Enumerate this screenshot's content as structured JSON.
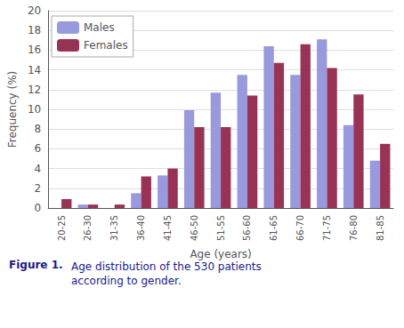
{
  "chart_data": {
    "type": "bar",
    "categories": [
      "20-25",
      "26-30",
      "31-35",
      "36-40",
      "41-45",
      "46-50",
      "51-55",
      "56-60",
      "61-65",
      "66-70",
      "71-75",
      "76-80",
      "81-85"
    ],
    "series": [
      {
        "name": "Males",
        "color": "#9999DD",
        "values": [
          0.0,
          0.35,
          0.0,
          1.5,
          3.3,
          9.9,
          11.7,
          13.5,
          16.4,
          13.5,
          17.1,
          8.4,
          4.8
        ]
      },
      {
        "name": "Females",
        "color": "#993355",
        "values": [
          0.9,
          0.35,
          0.35,
          3.2,
          4.0,
          8.2,
          8.2,
          11.4,
          14.7,
          16.6,
          14.2,
          11.5,
          6.5
        ]
      }
    ],
    "xlabel": "Age (years)",
    "ylabel": "Frequency (%)",
    "ylim": [
      0,
      20
    ],
    "yticks": [
      0,
      2,
      4,
      6,
      8,
      10,
      12,
      14,
      16,
      18,
      20
    ],
    "grid": true,
    "legend": "upper left",
    "annotations": [
      "Figure 1.",
      "Age distribution of the 530 patients\naccording to gender."
    ]
  }
}
